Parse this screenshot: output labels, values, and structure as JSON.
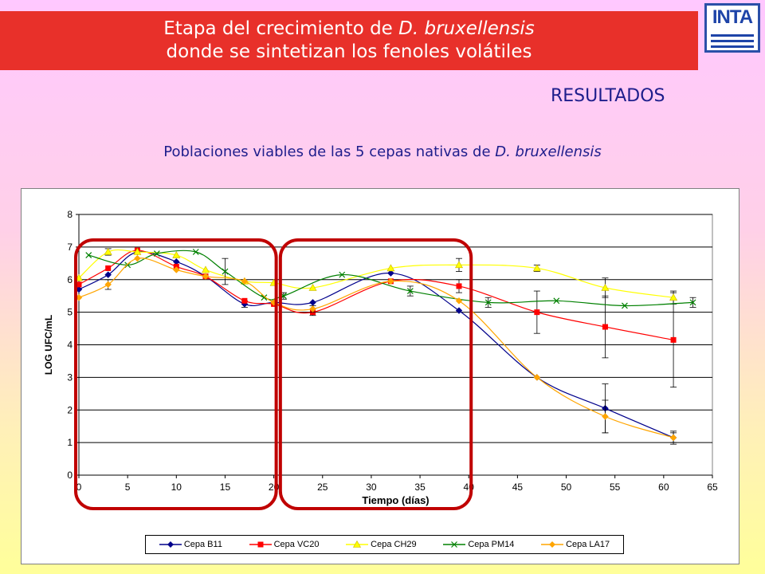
{
  "banner": {
    "line1_prefix": "Etapa del crecimiento de ",
    "line1_italic": "D. bruxellensis",
    "line2": "donde se sintetizan los fenoles volátiles"
  },
  "logo": {
    "text": "INTA",
    "color": "#1e44a8"
  },
  "section_heading": "RESULTADOS",
  "subtitle": {
    "prefix": "Poblaciones viables de las 5 cepas nativas de ",
    "italic": "D. bruxellensis"
  },
  "chart_data": {
    "type": "line",
    "title": "",
    "xlabel": "Tiempo (días)",
    "ylabel": "LOG UFC/mL",
    "xlim": [
      0,
      65
    ],
    "ylim": [
      0,
      8
    ],
    "xticks": [
      0,
      5,
      10,
      15,
      20,
      25,
      30,
      35,
      40,
      45,
      50,
      55,
      60,
      65
    ],
    "yticks": [
      0,
      1,
      2,
      3,
      4,
      5,
      6,
      7,
      8
    ],
    "grid": "horizontal",
    "legend_position": "bottom",
    "series": [
      {
        "name": "Cepa B11",
        "color": "#00008b",
        "marker": "diamond",
        "points": [
          [
            0,
            5.7
          ],
          [
            3,
            6.15
          ],
          [
            6,
            6.85
          ],
          [
            10,
            6.55
          ],
          [
            13,
            6.1
          ],
          [
            17,
            5.25
          ],
          [
            20,
            5.3
          ],
          [
            24,
            5.3
          ],
          [
            32,
            6.2
          ],
          [
            39,
            5.05
          ],
          [
            47,
            3.0
          ],
          [
            54,
            2.05
          ],
          [
            61,
            1.15
          ]
        ],
        "errors": [
          [
            17,
            0.1
          ],
          [
            54,
            0.75
          ],
          [
            61,
            0.15
          ]
        ]
      },
      {
        "name": "Cepa VC20",
        "color": "#ff0000",
        "marker": "square",
        "points": [
          [
            0,
            5.85
          ],
          [
            3,
            6.35
          ],
          [
            6,
            6.9
          ],
          [
            10,
            6.4
          ],
          [
            13,
            6.1
          ],
          [
            17,
            5.35
          ],
          [
            20,
            5.25
          ],
          [
            24,
            5.0
          ],
          [
            32,
            5.95
          ],
          [
            39,
            5.8
          ],
          [
            47,
            5.0
          ],
          [
            54,
            4.55
          ],
          [
            61,
            4.15
          ]
        ],
        "errors": [
          [
            24,
            0.1
          ],
          [
            39,
            0.2
          ],
          [
            47,
            0.65
          ],
          [
            54,
            0.95
          ],
          [
            61,
            1.45
          ]
        ]
      },
      {
        "name": "Cepa CH29",
        "color": "#ffff00",
        "marker": "triangle",
        "points": [
          [
            0,
            6.05
          ],
          [
            3,
            6.85
          ],
          [
            6,
            6.85
          ],
          [
            10,
            6.75
          ],
          [
            13,
            6.3
          ],
          [
            17,
            5.95
          ],
          [
            20,
            5.9
          ],
          [
            24,
            5.75
          ],
          [
            32,
            6.35
          ],
          [
            39,
            6.45
          ],
          [
            47,
            6.35
          ],
          [
            54,
            5.75
          ],
          [
            61,
            5.45
          ]
        ],
        "errors": [
          [
            3,
            0.1
          ],
          [
            39,
            0.2
          ],
          [
            47,
            0.1
          ],
          [
            54,
            0.3
          ],
          [
            61,
            0.2
          ]
        ]
      },
      {
        "name": "Cepa PM14",
        "color": "#008000",
        "marker": "x",
        "points": [
          [
            1,
            6.75
          ],
          [
            5,
            6.45
          ],
          [
            8,
            6.8
          ],
          [
            12,
            6.85
          ],
          [
            15,
            6.25
          ],
          [
            19,
            5.45
          ],
          [
            21,
            5.5
          ],
          [
            27,
            6.15
          ],
          [
            34,
            5.65
          ],
          [
            42,
            5.3
          ],
          [
            49,
            5.35
          ],
          [
            56,
            5.2
          ],
          [
            63,
            5.3
          ]
        ],
        "errors": [
          [
            15,
            0.4
          ],
          [
            21,
            0.1
          ],
          [
            34,
            0.15
          ],
          [
            42,
            0.15
          ],
          [
            63,
            0.15
          ]
        ]
      },
      {
        "name": "Cepa LA17",
        "color": "#ffa500",
        "marker": "diamond",
        "points": [
          [
            0,
            5.45
          ],
          [
            3,
            5.85
          ],
          [
            6,
            6.65
          ],
          [
            10,
            6.3
          ],
          [
            13,
            6.1
          ],
          [
            17,
            5.95
          ],
          [
            20,
            5.3
          ],
          [
            24,
            5.1
          ],
          [
            32,
            5.95
          ],
          [
            39,
            5.35
          ],
          [
            47,
            3.0
          ],
          [
            54,
            1.8
          ],
          [
            61,
            1.15
          ]
        ],
        "errors": [
          [
            3,
            0.15
          ],
          [
            24,
            0.1
          ],
          [
            54,
            0.5
          ],
          [
            61,
            0.2
          ]
        ]
      }
    ],
    "highlight_regions": [
      [
        0,
        20
      ],
      [
        21,
        40
      ]
    ],
    "highlight_color": "#c00000"
  }
}
